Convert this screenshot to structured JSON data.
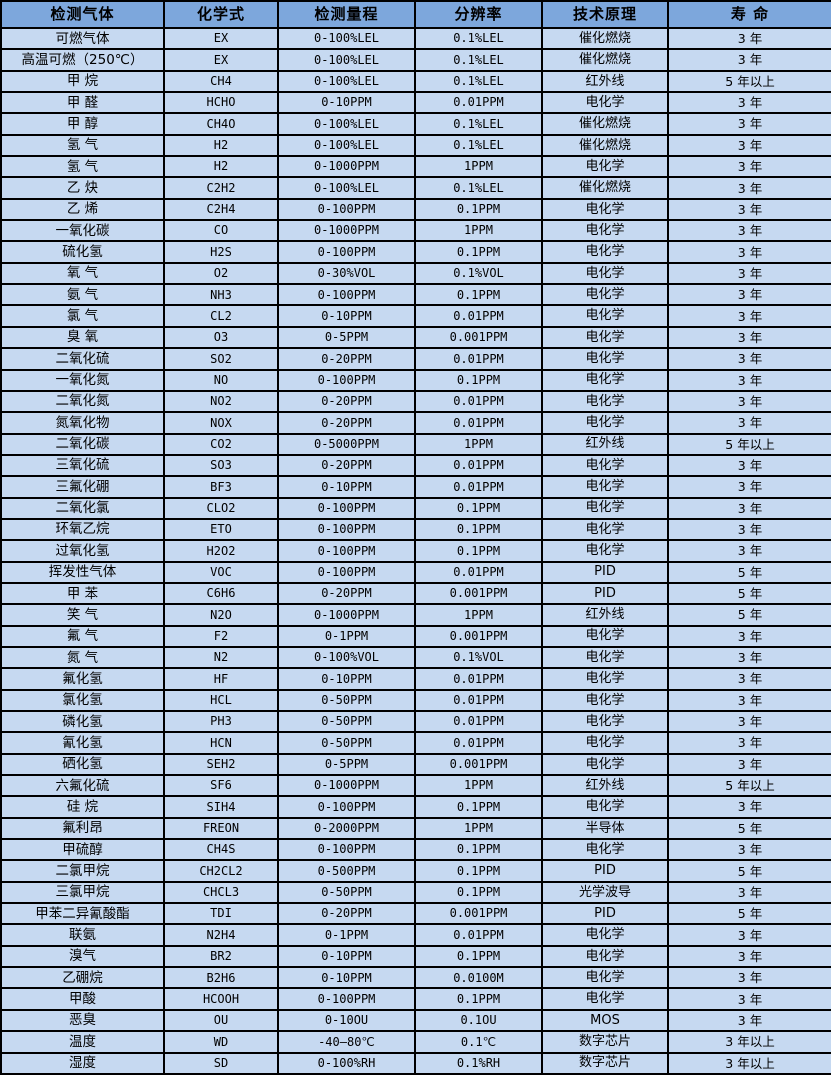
{
  "colors": {
    "header_bg": "#7da7dc",
    "row_bg": "#c6d9f1",
    "border": "#000000",
    "text": "#000000"
  },
  "table": {
    "columns": [
      {
        "key": "gas",
        "label": "检测气体"
      },
      {
        "key": "formula",
        "label": "化学式"
      },
      {
        "key": "range",
        "label": "检测量程"
      },
      {
        "key": "resolution",
        "label": "分辨率"
      },
      {
        "key": "principle",
        "label": "技术原理"
      },
      {
        "key": "lifespan",
        "label": "寿 命"
      }
    ],
    "rows": [
      [
        "可燃气体",
        "EX",
        "0-100%LEL",
        "0.1%LEL",
        "催化燃烧",
        "3 年"
      ],
      [
        "高温可燃（250℃）",
        "EX",
        "0-100%LEL",
        "0.1%LEL",
        "催化燃烧",
        "3 年"
      ],
      [
        "甲 烷",
        "CH4",
        "0-100%LEL",
        "0.1%LEL",
        "红外线",
        "5 年以上"
      ],
      [
        "甲 醛",
        "HCHO",
        "0-10PPM",
        "0.01PPM",
        "电化学",
        "3 年"
      ],
      [
        "甲 醇",
        "CH4O",
        "0-100%LEL",
        "0.1%LEL",
        "催化燃烧",
        "3 年"
      ],
      [
        "氢 气",
        "H2",
        "0-100%LEL",
        "0.1%LEL",
        "催化燃烧",
        "3 年"
      ],
      [
        "氢 气",
        "H2",
        "0-1000PPM",
        "1PPM",
        "电化学",
        "3 年"
      ],
      [
        "乙 炔",
        "C2H2",
        "0-100%LEL",
        "0.1%LEL",
        "催化燃烧",
        "3 年"
      ],
      [
        "乙 烯",
        "C2H4",
        "0-100PPM",
        "0.1PPM",
        "电化学",
        "3 年"
      ],
      [
        "一氧化碳",
        "CO",
        "0-1000PPM",
        "1PPM",
        "电化学",
        "3 年"
      ],
      [
        "硫化氢",
        "H2S",
        "0-100PPM",
        "0.1PPM",
        "电化学",
        "3 年"
      ],
      [
        "氧 气",
        "O2",
        "0-30%VOL",
        "0.1%VOL",
        "电化学",
        "3 年"
      ],
      [
        "氨 气",
        "NH3",
        "0-100PPM",
        "0.1PPM",
        "电化学",
        "3 年"
      ],
      [
        "氯 气",
        "CL2",
        "0-10PPM",
        "0.01PPM",
        "电化学",
        "3 年"
      ],
      [
        "臭 氧",
        "O3",
        "0-5PPM",
        "0.001PPM",
        "电化学",
        "3 年"
      ],
      [
        "二氧化硫",
        "SO2",
        "0-20PPM",
        "0.01PPM",
        "电化学",
        "3 年"
      ],
      [
        "一氧化氮",
        "NO",
        "0-100PPM",
        "0.1PPM",
        "电化学",
        "3 年"
      ],
      [
        "二氧化氮",
        "NO2",
        "0-20PPM",
        "0.01PPM",
        "电化学",
        "3 年"
      ],
      [
        "氮氧化物",
        "NOX",
        "0-20PPM",
        "0.01PPM",
        "电化学",
        "3 年"
      ],
      [
        "二氧化碳",
        "CO2",
        "0-5000PPM",
        "1PPM",
        "红外线",
        "5 年以上"
      ],
      [
        "三氧化硫",
        "SO3",
        "0-20PPM",
        "0.01PPM",
        "电化学",
        "3 年"
      ],
      [
        "三氟化硼",
        "BF3",
        "0-10PPM",
        "0.01PPM",
        "电化学",
        "3 年"
      ],
      [
        "二氧化氯",
        "CLO2",
        "0-100PPM",
        "0.1PPM",
        "电化学",
        "3 年"
      ],
      [
        "环氧乙烷",
        "ETO",
        "0-100PPM",
        "0.1PPM",
        "电化学",
        "3 年"
      ],
      [
        "过氧化氢",
        "H2O2",
        "0-100PPM",
        "0.1PPM",
        "电化学",
        "3 年"
      ],
      [
        "挥发性气体",
        "VOC",
        "0-100PPM",
        "0.01PPM",
        "PID",
        "5 年"
      ],
      [
        "甲 苯",
        "C6H6",
        "0-20PPM",
        "0.001PPM",
        "PID",
        "5 年"
      ],
      [
        "笑 气",
        "N2O",
        "0-1000PPM",
        "1PPM",
        "红外线",
        "5 年"
      ],
      [
        "氟 气",
        "F2",
        "0-1PPM",
        "0.001PPM",
        "电化学",
        "3 年"
      ],
      [
        "氮 气",
        "N2",
        "0-100%VOL",
        "0.1%VOL",
        "电化学",
        "3 年"
      ],
      [
        "氟化氢",
        "HF",
        "0-10PPM",
        "0.01PPM",
        "电化学",
        "3 年"
      ],
      [
        "氯化氢",
        "HCL",
        "0-50PPM",
        "0.01PPM",
        "电化学",
        "3 年"
      ],
      [
        "磷化氢",
        "PH3",
        "0-50PPM",
        "0.01PPM",
        "电化学",
        "3 年"
      ],
      [
        "氰化氢",
        "HCN",
        "0-50PPM",
        "0.01PPM",
        "电化学",
        "3 年"
      ],
      [
        "硒化氢",
        "SEH2",
        "0-5PPM",
        "0.001PPM",
        "电化学",
        "3 年"
      ],
      [
        "六氟化硫",
        "SF6",
        "0-1000PPM",
        "1PPM",
        "红外线",
        "5 年以上"
      ],
      [
        "硅 烷",
        "SIH4",
        "0-100PPM",
        "0.1PPM",
        "电化学",
        "3 年"
      ],
      [
        "氟利昂",
        "FREON",
        "0-2000PPM",
        "1PPM",
        "半导体",
        "5 年"
      ],
      [
        "甲硫醇",
        "CH4S",
        "0-100PPM",
        "0.1PPM",
        "电化学",
        "3 年"
      ],
      [
        "二氯甲烷",
        "CH2CL2",
        "0-500PPM",
        "0.1PPM",
        "PID",
        "5 年"
      ],
      [
        "三氯甲烷",
        "CHCL3",
        "0-50PPM",
        "0.1PPM",
        "光学波导",
        "3 年"
      ],
      [
        "甲苯二异氰酸酯",
        "TDI",
        "0-20PPM",
        "0.001PPM",
        "PID",
        "5 年"
      ],
      [
        "联氨",
        "N2H4",
        "0-1PPM",
        "0.01PPM",
        "电化学",
        "3 年"
      ],
      [
        "溴气",
        "BR2",
        "0-10PPM",
        "0.1PPM",
        "电化学",
        "3 年"
      ],
      [
        "乙硼烷",
        "B2H6",
        "0-10PPM",
        "0.0100M",
        "电化学",
        "3 年"
      ],
      [
        "甲酸",
        "HCOOH",
        "0-100PPM",
        "0.1PPM",
        "电化学",
        "3 年"
      ],
      [
        "恶臭",
        "OU",
        "0-10OU",
        "0.1OU",
        "MOS",
        "3 年"
      ],
      [
        "温度",
        "WD",
        "-40—80℃",
        "0.1℃",
        "数字芯片",
        "3 年以上"
      ],
      [
        "湿度",
        "SD",
        "0-100%RH",
        "0.1%RH",
        "数字芯片",
        "3 年以上"
      ]
    ]
  }
}
